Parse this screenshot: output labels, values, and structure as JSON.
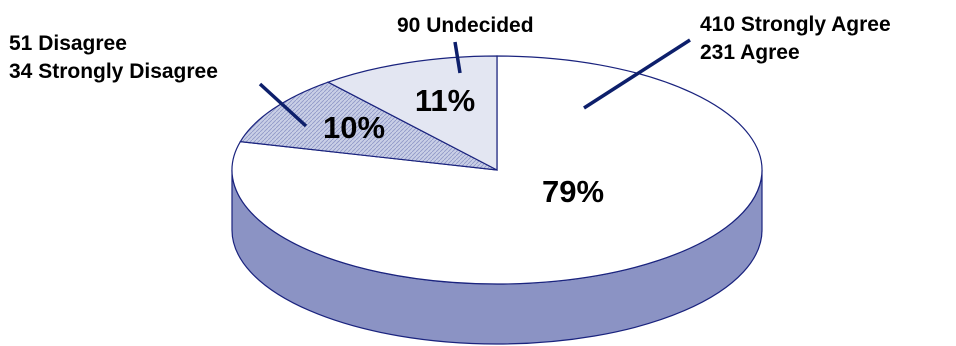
{
  "chart_data": {
    "type": "pie",
    "style": "3d",
    "slices": [
      {
        "percent_label": "79%",
        "value": 79,
        "annotations": [
          "410 Strongly Agree",
          "231 Agree"
        ],
        "fill": "#ffffff"
      },
      {
        "percent_label": "10%",
        "value": 10,
        "annotations": [
          "51 Disagree",
          "34 Strongly Disagree"
        ],
        "fill": "#c5cbe3"
      },
      {
        "percent_label": "11%",
        "value": 11,
        "annotations": [
          "90 Undecided"
        ],
        "fill": "#e3e6f2"
      }
    ],
    "colors": {
      "outline": "#1a237e",
      "side": "#8b93c4",
      "leader": "#0d1f6b"
    }
  }
}
